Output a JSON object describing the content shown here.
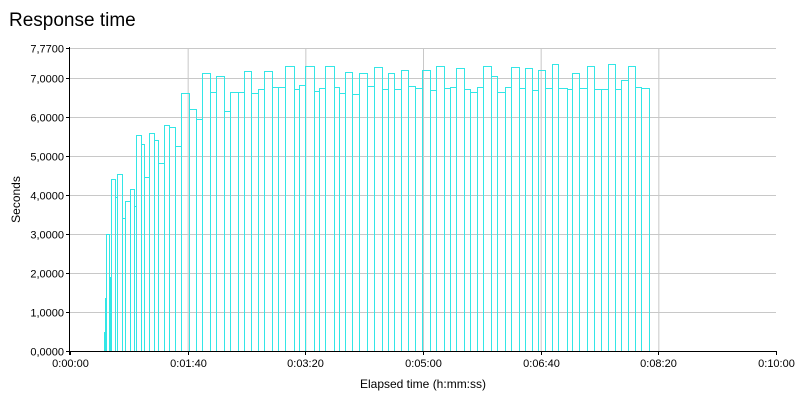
{
  "chart_data": {
    "type": "bar",
    "title": "Response time",
    "xlabel": "Elapsed time (h:mm:ss)",
    "ylabel": "Seconds",
    "xlim": [
      0,
      600
    ],
    "ylim": [
      0,
      7.77
    ],
    "x_tick_labels": [
      "0:00:00",
      "0:01:40",
      "0:03:20",
      "0:05:00",
      "0:06:40",
      "0:08:20",
      "0:10:00"
    ],
    "x_tick_values": [
      0,
      100,
      200,
      300,
      400,
      500,
      600
    ],
    "y_tick_labels": [
      "0,0000",
      "1,0000",
      "2,0000",
      "3,0000",
      "4,0000",
      "5,0000",
      "6,0000",
      "7,0000",
      "7,7700"
    ],
    "y_tick_values": [
      0,
      1,
      2,
      3,
      4,
      5,
      6,
      7,
      7.77
    ],
    "grid": true,
    "bar_color": "#33e6e6",
    "series": [
      {
        "values": [
          [
            29,
            30,
            0.5
          ],
          [
            30,
            31,
            1.35
          ],
          [
            31,
            33,
            3.0
          ],
          [
            33,
            34,
            1.9
          ],
          [
            35,
            38,
            4.42
          ],
          [
            38,
            40,
            3.95
          ],
          [
            40,
            44,
            4.53
          ],
          [
            44,
            47,
            3.42
          ],
          [
            47,
            51,
            3.85
          ],
          [
            51,
            54,
            4.15
          ],
          [
            54,
            56,
            3.72
          ],
          [
            56,
            60,
            5.55
          ],
          [
            60,
            63,
            5.3
          ],
          [
            63,
            67,
            4.45
          ],
          [
            67,
            71,
            5.6
          ],
          [
            71,
            75,
            5.42
          ],
          [
            75,
            80,
            4.82
          ],
          [
            80,
            84,
            5.8
          ],
          [
            84,
            89,
            5.75
          ],
          [
            89,
            94,
            5.25
          ],
          [
            94,
            101,
            6.62
          ],
          [
            101,
            107,
            6.2
          ],
          [
            107,
            112,
            5.95
          ],
          [
            112,
            119,
            7.12
          ],
          [
            119,
            124,
            6.65
          ],
          [
            124,
            131,
            7.05
          ],
          [
            131,
            136,
            6.15
          ],
          [
            136,
            143,
            6.65
          ],
          [
            143,
            148,
            6.65
          ],
          [
            148,
            154,
            7.18
          ],
          [
            154,
            160,
            6.62
          ],
          [
            160,
            165,
            6.72
          ],
          [
            165,
            172,
            7.18
          ],
          [
            172,
            177,
            6.78
          ],
          [
            177,
            183,
            6.78
          ],
          [
            183,
            190,
            7.3
          ],
          [
            190,
            195,
            6.72
          ],
          [
            195,
            200,
            6.82
          ],
          [
            200,
            207,
            7.32
          ],
          [
            207,
            212,
            6.68
          ],
          [
            212,
            217,
            6.75
          ],
          [
            217,
            224,
            7.3
          ],
          [
            224,
            229,
            6.78
          ],
          [
            229,
            234,
            6.62
          ],
          [
            234,
            240,
            7.15
          ],
          [
            240,
            246,
            6.6
          ],
          [
            246,
            252,
            7.12
          ],
          [
            252,
            258,
            6.8
          ],
          [
            258,
            265,
            7.28
          ],
          [
            265,
            270,
            6.72
          ],
          [
            270,
            275,
            7.12
          ],
          [
            275,
            281,
            6.72
          ],
          [
            281,
            287,
            7.2
          ],
          [
            287,
            293,
            6.8
          ],
          [
            293,
            299,
            6.75
          ],
          [
            299,
            306,
            7.2
          ],
          [
            306,
            311,
            6.7
          ],
          [
            311,
            318,
            7.3
          ],
          [
            318,
            323,
            6.75
          ],
          [
            323,
            328,
            6.78
          ],
          [
            328,
            335,
            7.25
          ],
          [
            335,
            340,
            6.72
          ],
          [
            340,
            346,
            6.65
          ],
          [
            346,
            351,
            6.78
          ],
          [
            351,
            358,
            7.3
          ],
          [
            358,
            363,
            7.05
          ],
          [
            363,
            370,
            6.65
          ],
          [
            370,
            375,
            6.78
          ],
          [
            375,
            382,
            7.28
          ],
          [
            382,
            387,
            6.75
          ],
          [
            387,
            393,
            7.25
          ],
          [
            393,
            398,
            6.7
          ],
          [
            398,
            404,
            7.2
          ],
          [
            404,
            410,
            6.75
          ],
          [
            410,
            415,
            7.35
          ],
          [
            415,
            422,
            6.75
          ],
          [
            422,
            427,
            6.72
          ],
          [
            427,
            433,
            7.12
          ],
          [
            433,
            439,
            6.75
          ],
          [
            439,
            445,
            7.3
          ],
          [
            445,
            451,
            6.72
          ],
          [
            451,
            457,
            6.72
          ],
          [
            457,
            463,
            7.35
          ],
          [
            463,
            468,
            6.72
          ],
          [
            468,
            474,
            6.95
          ],
          [
            474,
            480,
            7.3
          ],
          [
            480,
            485,
            6.78
          ],
          [
            485,
            492,
            6.75
          ]
        ]
      }
    ]
  }
}
